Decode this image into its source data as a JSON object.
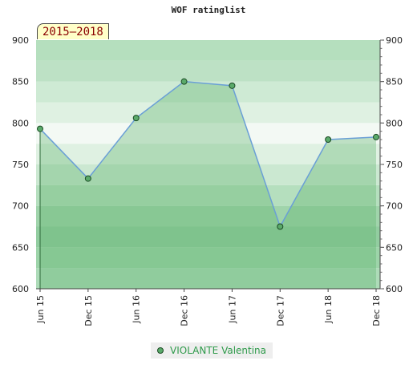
{
  "chart_data": {
    "type": "line",
    "title": "WOF ratinglist",
    "period_label": "2015–2018",
    "categories": [
      "Jun 15",
      "Dec 15",
      "Jun 16",
      "Dec 16",
      "Jun 17",
      "Dec 17",
      "Jun 18",
      "Dec 18"
    ],
    "series": [
      {
        "name": "VIOLANTE Valentina",
        "values": [
          793,
          733,
          806,
          850,
          845,
          675,
          780,
          783
        ]
      }
    ],
    "ylim": [
      600,
      900
    ],
    "yticks": [
      "600",
      "650",
      "700",
      "750",
      "800",
      "850",
      "900"
    ],
    "colors": {
      "line": "#6a9fd6",
      "area": "#5cb36a",
      "marker": "#5aaa6a",
      "marker_edge": "#1b4a24",
      "period_text": "#8a0000",
      "period_bg": "#ffffc8",
      "legend_text": "#2e9a4a"
    },
    "legend_position": "bottom-center",
    "grid": true
  }
}
